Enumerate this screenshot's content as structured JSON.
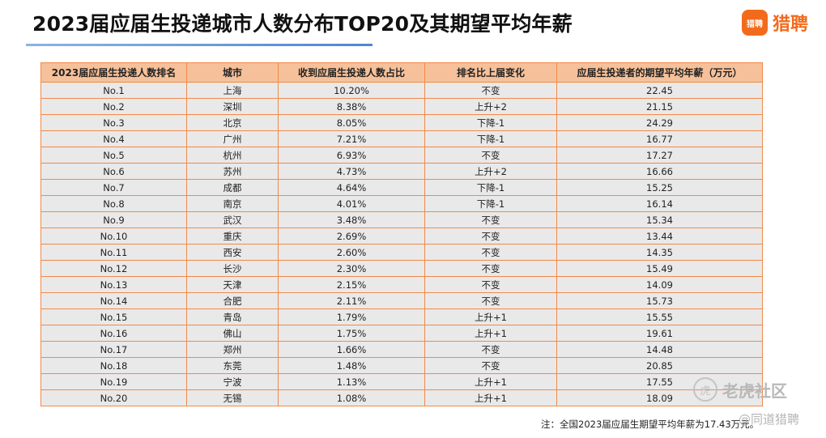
{
  "title": "2023届应届生投递城市人数分布TOP20及其期望平均年薪",
  "brand": {
    "logo_text": "猎聘",
    "name": "猎聘",
    "color": "#f26b1d"
  },
  "table": {
    "headers": [
      "2023届应届生投递人数排名",
      "城市",
      "收到应届生投递人数占比",
      "排名比上届变化",
      "应届生投递者的期望平均年薪（万元）"
    ],
    "rows": [
      [
        "No.1",
        "上海",
        "10.20%",
        "不变",
        "22.45"
      ],
      [
        "No.2",
        "深圳",
        "8.38%",
        "上升+2",
        "21.15"
      ],
      [
        "No.3",
        "北京",
        "8.05%",
        "下降-1",
        "24.29"
      ],
      [
        "No.4",
        "广州",
        "7.21%",
        "下降-1",
        "16.77"
      ],
      [
        "No.5",
        "杭州",
        "6.93%",
        "不变",
        "17.27"
      ],
      [
        "No.6",
        "苏州",
        "4.73%",
        "上升+2",
        "16.66"
      ],
      [
        "No.7",
        "成都",
        "4.64%",
        "下降-1",
        "15.25"
      ],
      [
        "No.8",
        "南京",
        "4.01%",
        "下降-1",
        "16.14"
      ],
      [
        "No.9",
        "武汉",
        "3.48%",
        "不变",
        "15.34"
      ],
      [
        "No.10",
        "重庆",
        "2.69%",
        "不变",
        "13.44"
      ],
      [
        "No.11",
        "西安",
        "2.60%",
        "不变",
        "14.35"
      ],
      [
        "No.12",
        "长沙",
        "2.30%",
        "不变",
        "15.49"
      ],
      [
        "No.13",
        "天津",
        "2.15%",
        "不变",
        "14.09"
      ],
      [
        "No.14",
        "合肥",
        "2.11%",
        "不变",
        "15.73"
      ],
      [
        "No.15",
        "青岛",
        "1.79%",
        "上升+1",
        "15.55"
      ],
      [
        "No.16",
        "佛山",
        "1.75%",
        "上升+1",
        "19.61"
      ],
      [
        "No.17",
        "郑州",
        "1.66%",
        "不变",
        "14.48"
      ],
      [
        "No.18",
        "东莞",
        "1.48%",
        "不变",
        "20.85"
      ],
      [
        "No.19",
        "宁波",
        "1.13%",
        "上升+1",
        "17.55"
      ],
      [
        "No.20",
        "无锡",
        "1.08%",
        "上升+1",
        "18.09"
      ]
    ]
  },
  "note": "注：全国2023届应届生期望平均年薪为17.43万元。",
  "watermark": {
    "icon": "tiger-icon",
    "icon_glyph": "虎",
    "text": "老虎社区",
    "handle": "@同道猎聘"
  },
  "colors": {
    "header_bg": "#f6c19a",
    "border": "#f08a4b",
    "row_bg": "#e9e9e9"
  }
}
